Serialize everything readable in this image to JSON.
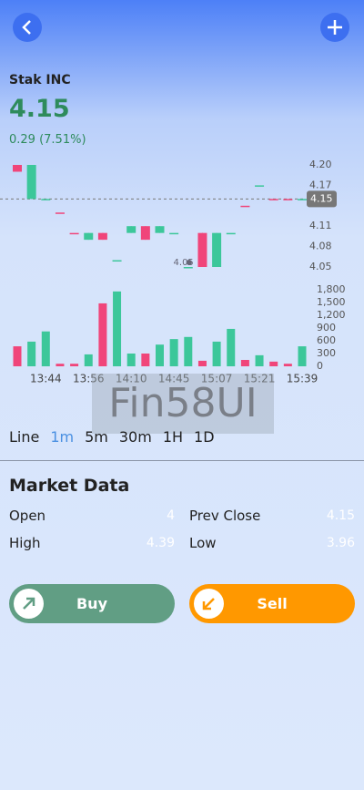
{
  "header": {
    "title": "Stak INC",
    "price": "4.15",
    "change": "0.29 (7.51%)"
  },
  "chart_data": {
    "type": "candlestick",
    "categories": [
      null,
      null,
      "13:44",
      null,
      null,
      "13:56",
      null,
      null,
      "14:10",
      null,
      null,
      "14:45",
      null,
      null,
      "15:07",
      null,
      null,
      "15:21",
      null,
      null,
      "15:39"
    ],
    "open": [
      4.2,
      4.15,
      4.15,
      4.13,
      4.1,
      4.1,
      4.1,
      4.06,
      4.11,
      4.11,
      4.1,
      4.1,
      4.05,
      4.1,
      4.05,
      4.1,
      4.14,
      4.17,
      4.15,
      4.15,
      4.15
    ],
    "high": [
      4.2,
      4.2,
      4.15,
      4.13,
      4.1,
      4.1,
      4.1,
      4.06,
      4.11,
      4.11,
      4.11,
      4.1,
      4.05,
      4.1,
      4.1,
      4.1,
      4.14,
      4.17,
      4.15,
      4.15,
      4.15
    ],
    "low": [
      4.19,
      4.15,
      4.15,
      4.13,
      4.1,
      4.09,
      4.09,
      4.06,
      4.1,
      4.09,
      4.1,
      4.1,
      4.05,
      4.05,
      4.05,
      4.1,
      4.14,
      4.17,
      4.15,
      4.15,
      4.15
    ],
    "close": [
      4.19,
      4.2,
      4.15,
      4.13,
      4.1,
      4.09,
      4.09,
      4.06,
      4.1,
      4.09,
      4.11,
      4.1,
      4.05,
      4.05,
      4.1,
      4.1,
      4.14,
      4.17,
      4.15,
      4.15,
      4.15
    ],
    "colors": [
      "#f0457a",
      "#3cc79a",
      "#3cc79a",
      "#f0457a",
      "#f0457a",
      "#3cc79a",
      "#f0457a",
      "#3cc79a",
      "#3cc79a",
      "#f0457a",
      "#3cc79a",
      "#3cc79a",
      "#3cc79a",
      "#f0457a",
      "#3cc79a",
      "#3cc79a",
      "#f0457a",
      "#3cc79a",
      "#f0457a",
      "#f0457a",
      "#3cc79a"
    ],
    "ylim": [
      4.05,
      4.2
    ],
    "yticks": [
      4.05,
      4.08,
      4.11,
      4.17,
      {
        "value": 4.2,
        "label": "4.20"
      }
    ],
    "last_price": 4.15,
    "min_label": 4.05,
    "volume": {
      "values": [
        470,
        580,
        820,
        60,
        60,
        280,
        1480,
        1760,
        300,
        300,
        510,
        640,
        690,
        130,
        580,
        880,
        150,
        260,
        110,
        60,
        470
      ],
      "ylim": [
        0,
        1800
      ],
      "yticks": [
        0,
        300,
        600,
        900,
        {
          "value": 1200,
          "label": "1,200"
        },
        {
          "value": 1500,
          "label": "1,500"
        },
        {
          "value": 1800,
          "label": "1,800"
        }
      ]
    }
  },
  "watermark": "Fin58UI",
  "tabs": [
    "Line",
    "1m",
    "5m",
    "30m",
    "1H",
    "1D"
  ],
  "active_tab": "1m",
  "market_data": {
    "title": "Market Data",
    "rows": [
      [
        {
          "label": "Open",
          "value": "4"
        },
        {
          "label": "Prev Close",
          "value": "4.15"
        }
      ],
      [
        {
          "label": "High",
          "value": "4.39"
        },
        {
          "label": "Low",
          "value": "3.96"
        }
      ]
    ]
  },
  "buttons": {
    "buy": "Buy",
    "sell": "Sell"
  }
}
